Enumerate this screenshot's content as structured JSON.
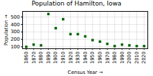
{
  "chart_data": {
    "type": "scatter",
    "title": "Population of Hamilton, Iowa",
    "xlabel": "Census Year",
    "ylabel": "Population",
    "x": [
      1860,
      1870,
      1880,
      1890,
      1900,
      1910,
      1920,
      1930,
      1940,
      1950,
      1960,
      1970,
      1980,
      1990,
      2000,
      2010,
      2020
    ],
    "values": [
      100,
      130,
      120,
      540,
      350,
      470,
      270,
      270,
      240,
      190,
      170,
      140,
      110,
      130,
      120,
      110,
      110
    ],
    "color": "#006400",
    "marker": "square",
    "xlim": [
      1855,
      2025
    ],
    "ylim": [
      75,
      575
    ],
    "xticks": [
      1860,
      1870,
      1880,
      1890,
      1900,
      1910,
      1920,
      1930,
      1940,
      1950,
      1960,
      1970,
      1980,
      1990,
      2000,
      2010,
      2020
    ],
    "yticks": [
      100,
      200,
      300,
      400,
      500
    ],
    "grid": true
  }
}
